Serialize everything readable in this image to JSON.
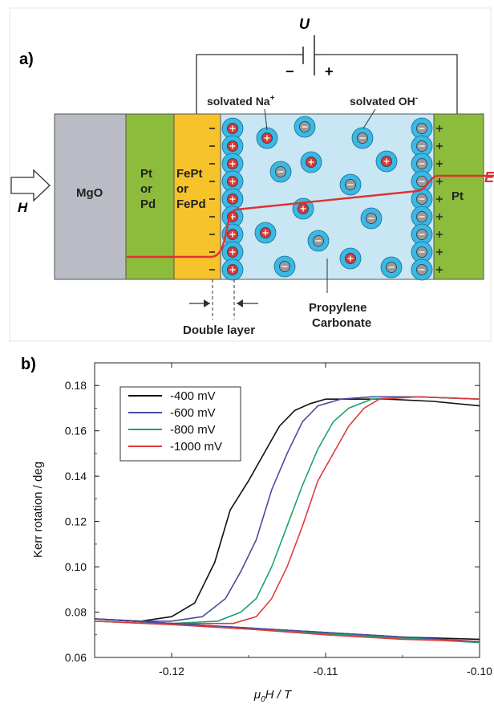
{
  "panel_a": {
    "label": "a)",
    "voltage_label": "U",
    "minus_sign": "−",
    "plus_sign": "+",
    "field_label": "H",
    "layers": {
      "mgo": "MgO",
      "pt_pd": [
        "Pt",
        "or",
        "Pd"
      ],
      "fept": [
        "FePt",
        "or",
        "FePd"
      ],
      "pt_right": "Pt"
    },
    "solvated_na": "solvated Na",
    "solvated_na_sup": "+",
    "solvated_oh": "solvated OH",
    "solvated_oh_sup": "-",
    "double_layer": "Double layer",
    "electrolyte": [
      "Propylene",
      "Carbonate"
    ],
    "trace_label": "E",
    "colors": {
      "mgo": "#b9bcc4",
      "pt": "#8dbb3c",
      "fept": "#f7c32a",
      "electrolyte": "#c8e6f3",
      "ion_ring": "#3ab8e6",
      "cation_core": "#d63a3a",
      "anion_core": "#9a9a9a",
      "trace": "#e0312f"
    }
  },
  "panel_b": {
    "label": "b)"
  },
  "chart_data": {
    "type": "line",
    "title": "",
    "xlabel_mu": "μ",
    "xlabel_sub": "0",
    "xlabel_rest": "H / T",
    "ylabel": "Kerr rotation / deg",
    "xlim": [
      -0.125,
      -0.1
    ],
    "ylim": [
      0.06,
      0.19
    ],
    "xticks": [
      -0.12,
      -0.11,
      -0.1
    ],
    "xtick_labels": [
      "-0.12",
      "-0.11",
      "-0.10"
    ],
    "yticks": [
      0.06,
      0.08,
      0.1,
      0.12,
      0.14,
      0.16,
      0.18
    ],
    "ytick_labels": [
      "0.06",
      "0.08",
      "0.10",
      "0.12",
      "0.14",
      "0.16",
      "0.18"
    ],
    "legend_position": "top-left",
    "series": [
      {
        "name": "-400 mV",
        "color": "#111111",
        "x": [
          -0.125,
          -0.122,
          -0.12,
          -0.1185,
          -0.1172,
          -0.1162,
          -0.115,
          -0.114,
          -0.113,
          -0.112,
          -0.111,
          -0.11,
          -0.108,
          -0.106,
          -0.103,
          -0.1
        ],
        "y": [
          0.077,
          0.076,
          0.078,
          0.084,
          0.102,
          0.125,
          0.138,
          0.15,
          0.162,
          0.169,
          0.172,
          0.174,
          0.174,
          0.174,
          0.173,
          0.171
        ]
      },
      {
        "name": "-600 mV",
        "color": "#4b4b9e",
        "x": [
          -0.125,
          -0.122,
          -0.12,
          -0.118,
          -0.1165,
          -0.1155,
          -0.1145,
          -0.1135,
          -0.1125,
          -0.1115,
          -0.1105,
          -0.109,
          -0.107,
          -0.104,
          -0.1
        ],
        "y": [
          0.077,
          0.076,
          0.076,
          0.078,
          0.086,
          0.098,
          0.112,
          0.134,
          0.15,
          0.164,
          0.171,
          0.174,
          0.175,
          0.175,
          0.174
        ]
      },
      {
        "name": "-800 mV",
        "color": "#1aa36f",
        "x": [
          -0.125,
          -0.12,
          -0.117,
          -0.1155,
          -0.1145,
          -0.1135,
          -0.1125,
          -0.1115,
          -0.1105,
          -0.1095,
          -0.1085,
          -0.107,
          -0.104,
          -0.1
        ],
        "y": [
          0.077,
          0.075,
          0.076,
          0.08,
          0.086,
          0.1,
          0.118,
          0.136,
          0.152,
          0.164,
          0.17,
          0.174,
          0.175,
          0.174
        ]
      },
      {
        "name": "-1000 mV",
        "color": "#e03b3b",
        "x": [
          -0.125,
          -0.12,
          -0.116,
          -0.1145,
          -0.1135,
          -0.1125,
          -0.1115,
          -0.1105,
          -0.1095,
          -0.1085,
          -0.1075,
          -0.1065,
          -0.104,
          -0.1
        ],
        "y": [
          0.077,
          0.075,
          0.075,
          0.078,
          0.086,
          0.1,
          0.118,
          0.138,
          0.15,
          0.162,
          0.17,
          0.174,
          0.175,
          0.174
        ]
      },
      {
        "name": "",
        "color": "#111111",
        "x": [
          -0.125,
          -0.12,
          -0.115,
          -0.11,
          -0.105,
          -0.1
        ],
        "y": [
          0.077,
          0.075,
          0.073,
          0.071,
          0.069,
          0.068
        ]
      },
      {
        "name": "",
        "color": "#4b4b9e",
        "x": [
          -0.125,
          -0.12,
          -0.115,
          -0.11,
          -0.105,
          -0.1
        ],
        "y": [
          0.077,
          0.075,
          0.073,
          0.071,
          0.069,
          0.067
        ]
      },
      {
        "name": "",
        "color": "#1aa36f",
        "x": [
          -0.125,
          -0.12,
          -0.115,
          -0.11,
          -0.105,
          -0.1
        ],
        "y": [
          0.076,
          0.0745,
          0.0725,
          0.0705,
          0.0685,
          0.0665
        ]
      },
      {
        "name": "",
        "color": "#e03b3b",
        "x": [
          -0.125,
          -0.12,
          -0.115,
          -0.11,
          -0.105,
          -0.1
        ],
        "y": [
          0.076,
          0.0745,
          0.0725,
          0.07,
          0.068,
          0.067
        ]
      }
    ]
  }
}
